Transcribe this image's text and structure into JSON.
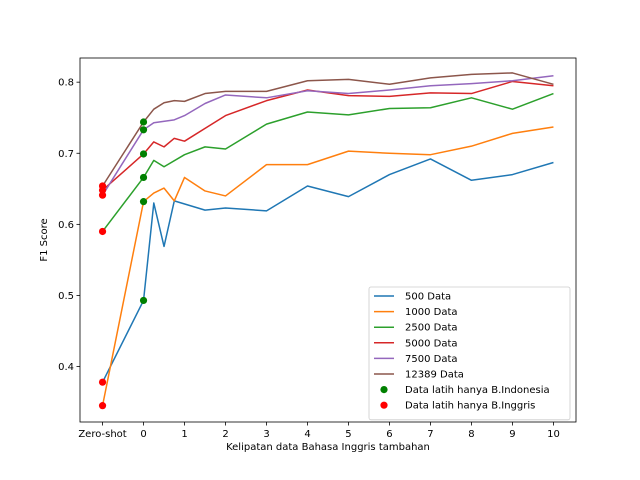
{
  "chart_data": {
    "type": "line",
    "title": "",
    "xlabel": "Kelipatan data Bahasa Inggris tambahan",
    "ylabel": "F1 Score",
    "x_ticks": [
      {
        "x": -1,
        "label": "Zero-shot"
      },
      {
        "x": 0,
        "label": "0"
      },
      {
        "x": 1,
        "label": "1"
      },
      {
        "x": 2,
        "label": "2"
      },
      {
        "x": 3,
        "label": "3"
      },
      {
        "x": 4,
        "label": "4"
      },
      {
        "x": 5,
        "label": "5"
      },
      {
        "x": 6,
        "label": "6"
      },
      {
        "x": 7,
        "label": "7"
      },
      {
        "x": 8,
        "label": "8"
      },
      {
        "x": 9,
        "label": "9"
      },
      {
        "x": 10,
        "label": "10"
      }
    ],
    "y_ticks": [
      0.4,
      0.5,
      0.6,
      0.7,
      0.8
    ],
    "xlim": [
      -1.55,
      10.55
    ],
    "ylim": [
      0.322,
      0.834
    ],
    "grid": false,
    "legend_position": "lower-right",
    "series": [
      {
        "name": "500 Data",
        "color": "#1f77b4",
        "points": [
          [
            -1,
            0.378
          ],
          [
            0,
            0.493
          ],
          [
            0.25,
            0.63
          ],
          [
            0.5,
            0.569
          ],
          [
            0.75,
            0.633
          ],
          [
            1.5,
            0.62
          ],
          [
            2,
            0.623
          ],
          [
            3,
            0.619
          ],
          [
            4,
            0.654
          ],
          [
            5,
            0.639
          ],
          [
            6,
            0.67
          ],
          [
            7,
            0.692
          ],
          [
            8,
            0.662
          ],
          [
            9,
            0.67
          ],
          [
            10,
            0.687
          ]
        ]
      },
      {
        "name": "1000 Data",
        "color": "#ff7f0e",
        "points": [
          [
            -1,
            0.345
          ],
          [
            0,
            0.632
          ],
          [
            0.25,
            0.644
          ],
          [
            0.5,
            0.651
          ],
          [
            0.75,
            0.633
          ],
          [
            1,
            0.666
          ],
          [
            1.5,
            0.647
          ],
          [
            2,
            0.64
          ],
          [
            3,
            0.684
          ],
          [
            4,
            0.684
          ],
          [
            5,
            0.703
          ],
          [
            6,
            0.7
          ],
          [
            7,
            0.698
          ],
          [
            8,
            0.71
          ],
          [
            9,
            0.728
          ],
          [
            10,
            0.737
          ]
        ]
      },
      {
        "name": "2500 Data",
        "color": "#2ca02c",
        "points": [
          [
            -1,
            0.59
          ],
          [
            0,
            0.666
          ],
          [
            0.25,
            0.69
          ],
          [
            0.5,
            0.681
          ],
          [
            1,
            0.698
          ],
          [
            1.5,
            0.709
          ],
          [
            2,
            0.706
          ],
          [
            3,
            0.741
          ],
          [
            4,
            0.758
          ],
          [
            5,
            0.754
          ],
          [
            6,
            0.763
          ],
          [
            7,
            0.764
          ],
          [
            8,
            0.778
          ],
          [
            9,
            0.762
          ],
          [
            10,
            0.784
          ]
        ]
      },
      {
        "name": "5000 Data",
        "color": "#d62728",
        "points": [
          [
            -1,
            0.648
          ],
          [
            0,
            0.699
          ],
          [
            0.25,
            0.716
          ],
          [
            0.5,
            0.709
          ],
          [
            0.75,
            0.721
          ],
          [
            1,
            0.717
          ],
          [
            2,
            0.753
          ],
          [
            3,
            0.774
          ],
          [
            4,
            0.789
          ],
          [
            5,
            0.781
          ],
          [
            6,
            0.78
          ],
          [
            7,
            0.785
          ],
          [
            8,
            0.784
          ],
          [
            9,
            0.801
          ],
          [
            10,
            0.795
          ]
        ]
      },
      {
        "name": "7500 Data",
        "color": "#9467bd",
        "points": [
          [
            -1,
            0.641
          ],
          [
            0,
            0.733
          ],
          [
            0.25,
            0.743
          ],
          [
            0.75,
            0.747
          ],
          [
            1,
            0.753
          ],
          [
            1.5,
            0.77
          ],
          [
            2,
            0.782
          ],
          [
            3,
            0.778
          ],
          [
            4,
            0.788
          ],
          [
            5,
            0.784
          ],
          [
            6,
            0.789
          ],
          [
            7,
            0.795
          ],
          [
            8,
            0.798
          ],
          [
            9,
            0.802
          ],
          [
            10,
            0.809
          ]
        ]
      },
      {
        "name": "12389 Data",
        "color": "#8c564b",
        "points": [
          [
            -1,
            0.654
          ],
          [
            0,
            0.744
          ],
          [
            0.25,
            0.762
          ],
          [
            0.5,
            0.771
          ],
          [
            0.75,
            0.774
          ],
          [
            1,
            0.773
          ],
          [
            1.5,
            0.784
          ],
          [
            2,
            0.787
          ],
          [
            3,
            0.787
          ],
          [
            4,
            0.802
          ],
          [
            5,
            0.804
          ],
          [
            6,
            0.797
          ],
          [
            7,
            0.806
          ],
          [
            8,
            0.811
          ],
          [
            9,
            0.813
          ],
          [
            10,
            0.797
          ]
        ]
      }
    ],
    "scatter": [
      {
        "name": "Data latih hanya B.Indonesia",
        "color": "#008000",
        "points": [
          [
            0,
            0.493
          ],
          [
            0,
            0.632
          ],
          [
            0,
            0.666
          ],
          [
            0,
            0.699
          ],
          [
            0,
            0.733
          ],
          [
            0,
            0.744
          ]
        ]
      },
      {
        "name": "Data latih hanya B.Inggris",
        "color": "#ff0000",
        "points": [
          [
            -1,
            0.345
          ],
          [
            -1,
            0.378
          ],
          [
            -1,
            0.59
          ],
          [
            -1,
            0.641
          ],
          [
            -1,
            0.648
          ],
          [
            -1,
            0.654
          ]
        ]
      }
    ]
  }
}
